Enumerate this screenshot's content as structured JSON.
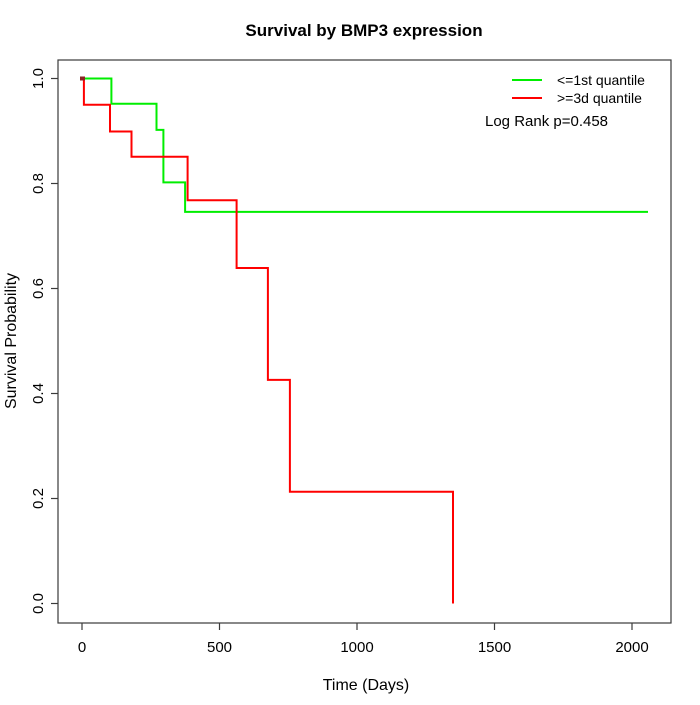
{
  "figure": {
    "title": "Survival by BMP3 expression",
    "xlabel": "Time (Days)",
    "ylabel": "Survival Probability"
  },
  "legend": {
    "items": [
      {
        "label": "<=1st quantile"
      },
      {
        "label": ">=3d quantile"
      }
    ],
    "pvalue": "Log Rank p=0.458"
  },
  "chart_data": {
    "type": "line",
    "subtype": "kaplan-meier-step-curves",
    "title": "Survival by BMP3 expression",
    "xlabel": "Time (Days)",
    "ylabel": "Survival Probability",
    "xlim": [
      0,
      2070
    ],
    "ylim": [
      0.0,
      1.0
    ],
    "grid": false,
    "legend_position": "top-right",
    "x_ticks": [
      "0",
      "500",
      "1000",
      "1500",
      "2000"
    ],
    "y_ticks": [
      "0.0",
      "0.2",
      "0.4",
      "0.6",
      "0.8",
      "1.0"
    ],
    "series": [
      {
        "name": "<=1st quantile",
        "color": "#00ee00",
        "steps_day_survival": [
          [
            0,
            1.0
          ],
          [
            107,
            0.952
          ],
          [
            271,
            0.902
          ],
          [
            296,
            0.802
          ],
          [
            375,
            0.746
          ],
          [
            2058,
            0.746
          ]
        ]
      },
      {
        "name": ">=3d quantile",
        "color": "#ff0000",
        "steps_day_survival": [
          [
            0,
            1.0
          ],
          [
            7,
            0.95
          ],
          [
            102,
            0.899
          ],
          [
            180,
            0.851
          ],
          [
            384,
            0.768
          ],
          [
            562,
            0.639
          ],
          [
            676,
            0.426
          ],
          [
            756,
            0.213
          ],
          [
            1349,
            0.0
          ]
        ]
      }
    ],
    "origin_marker": {
      "x": 0,
      "y": 1.0,
      "color": "#8b2323"
    },
    "annotations": [
      {
        "text": "Log Rank p=0.458"
      }
    ]
  }
}
